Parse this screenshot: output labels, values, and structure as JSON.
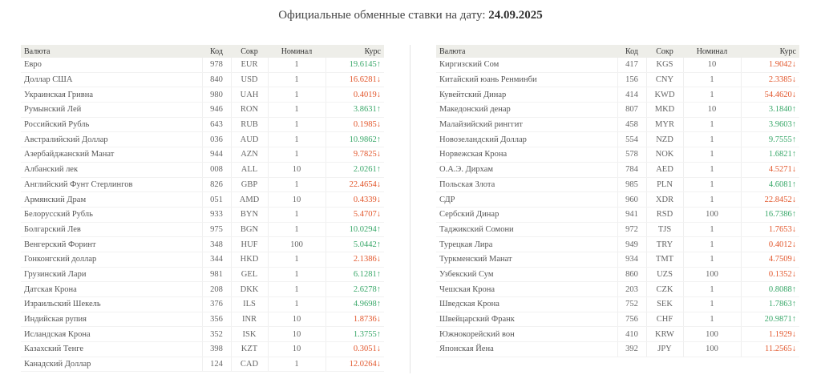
{
  "page": {
    "title_prefix": "Официальные обменные ставки на дату:",
    "title_date": "24.09.2025"
  },
  "headers": {
    "name": "Валюта",
    "code": "Код",
    "symbol": "Сокр",
    "nominal": "Номинал",
    "rate": "Курс"
  },
  "colors": {
    "up": "#3aa86a",
    "down": "#e2572c",
    "header_bg": "#eeeee9"
  },
  "left_rows": [
    {
      "name": "Евро",
      "code": "978",
      "symbol": "EUR",
      "nominal": "1",
      "rate": "19.6145↑",
      "dir": "up"
    },
    {
      "name": "Доллар США",
      "code": "840",
      "symbol": "USD",
      "nominal": "1",
      "rate": "16.6281↓",
      "dir": "down"
    },
    {
      "name": "Украинская Гривна",
      "code": "980",
      "symbol": "UAH",
      "nominal": "1",
      "rate": "0.4019↓",
      "dir": "down"
    },
    {
      "name": "Румынский Лей",
      "code": "946",
      "symbol": "RON",
      "nominal": "1",
      "rate": "3.8631↑",
      "dir": "up"
    },
    {
      "name": "Российский Рубль",
      "code": "643",
      "symbol": "RUB",
      "nominal": "1",
      "rate": "0.1985↓",
      "dir": "down"
    },
    {
      "name": "Австралийский Доллар",
      "code": "036",
      "symbol": "AUD",
      "nominal": "1",
      "rate": "10.9862↑",
      "dir": "up"
    },
    {
      "name": "Азербайджанский Манат",
      "code": "944",
      "symbol": "AZN",
      "nominal": "1",
      "rate": "9.7825↓",
      "dir": "down"
    },
    {
      "name": "Албанский лек",
      "code": "008",
      "symbol": "ALL",
      "nominal": "10",
      "rate": "2.0261↑",
      "dir": "up"
    },
    {
      "name": "Английский Фунт Стерлингов",
      "code": "826",
      "symbol": "GBP",
      "nominal": "1",
      "rate": "22.4654↓",
      "dir": "down"
    },
    {
      "name": "Армянский Драм",
      "code": "051",
      "symbol": "AMD",
      "nominal": "10",
      "rate": "0.4339↓",
      "dir": "down"
    },
    {
      "name": "Белорусский Рубль",
      "code": "933",
      "symbol": "BYN",
      "nominal": "1",
      "rate": "5.4707↓",
      "dir": "down"
    },
    {
      "name": "Болгарский Лев",
      "code": "975",
      "symbol": "BGN",
      "nominal": "1",
      "rate": "10.0294↑",
      "dir": "up"
    },
    {
      "name": "Венгерский Форинт",
      "code": "348",
      "symbol": "HUF",
      "nominal": "100",
      "rate": "5.0442↑",
      "dir": "up"
    },
    {
      "name": "Гонконгский доллар",
      "code": "344",
      "symbol": "HKD",
      "nominal": "1",
      "rate": "2.1386↓",
      "dir": "down"
    },
    {
      "name": "Грузинский Лари",
      "code": "981",
      "symbol": "GEL",
      "nominal": "1",
      "rate": "6.1281↑",
      "dir": "up"
    },
    {
      "name": "Датская Крона",
      "code": "208",
      "symbol": "DKK",
      "nominal": "1",
      "rate": "2.6278↑",
      "dir": "up"
    },
    {
      "name": "Израильский Шекель",
      "code": "376",
      "symbol": "ILS",
      "nominal": "1",
      "rate": "4.9698↑",
      "dir": "up"
    },
    {
      "name": "Индийская рупия",
      "code": "356",
      "symbol": "INR",
      "nominal": "10",
      "rate": "1.8736↓",
      "dir": "down"
    },
    {
      "name": "Исландская Крона",
      "code": "352",
      "symbol": "ISK",
      "nominal": "10",
      "rate": "1.3755↑",
      "dir": "up"
    },
    {
      "name": "Казахский Тенге",
      "code": "398",
      "symbol": "KZT",
      "nominal": "10",
      "rate": "0.3051↓",
      "dir": "down"
    },
    {
      "name": "Канадский Доллар",
      "code": "124",
      "symbol": "CAD",
      "nominal": "1",
      "rate": "12.0264↓",
      "dir": "down"
    }
  ],
  "right_rows": [
    {
      "name": "Киргизский Сом",
      "code": "417",
      "symbol": "KGS",
      "nominal": "10",
      "rate": "1.9042↓",
      "dir": "down"
    },
    {
      "name": "Китайский юань Ренминби",
      "code": "156",
      "symbol": "CNY",
      "nominal": "1",
      "rate": "2.3385↓",
      "dir": "down"
    },
    {
      "name": "Кувейтский Динар",
      "code": "414",
      "symbol": "KWD",
      "nominal": "1",
      "rate": "54.4620↓",
      "dir": "down"
    },
    {
      "name": "Македонский денар",
      "code": "807",
      "symbol": "MKD",
      "nominal": "10",
      "rate": "3.1840↑",
      "dir": "up"
    },
    {
      "name": "Малайзийский ринггит",
      "code": "458",
      "symbol": "MYR",
      "nominal": "1",
      "rate": "3.9603↑",
      "dir": "up"
    },
    {
      "name": "Новозеландский Доллар",
      "code": "554",
      "symbol": "NZD",
      "nominal": "1",
      "rate": "9.7555↑",
      "dir": "up"
    },
    {
      "name": "Норвежская Крона",
      "code": "578",
      "symbol": "NOK",
      "nominal": "1",
      "rate": "1.6821↑",
      "dir": "up"
    },
    {
      "name": "О.А.Э. Дирхам",
      "code": "784",
      "symbol": "AED",
      "nominal": "1",
      "rate": "4.5271↓",
      "dir": "down"
    },
    {
      "name": "Польская Злота",
      "code": "985",
      "symbol": "PLN",
      "nominal": "1",
      "rate": "4.6081↑",
      "dir": "up"
    },
    {
      "name": "СДР",
      "code": "960",
      "symbol": "XDR",
      "nominal": "1",
      "rate": "22.8452↓",
      "dir": "down"
    },
    {
      "name": "Сербский Динар",
      "code": "941",
      "symbol": "RSD",
      "nominal": "100",
      "rate": "16.7386↑",
      "dir": "up"
    },
    {
      "name": "Таджикский Сомони",
      "code": "972",
      "symbol": "TJS",
      "nominal": "1",
      "rate": "1.7653↓",
      "dir": "down"
    },
    {
      "name": "Турецкая Лира",
      "code": "949",
      "symbol": "TRY",
      "nominal": "1",
      "rate": "0.4012↓",
      "dir": "down"
    },
    {
      "name": "Туркменский Манат",
      "code": "934",
      "symbol": "TMT",
      "nominal": "1",
      "rate": "4.7509↓",
      "dir": "down"
    },
    {
      "name": "Узбекский Сум",
      "code": "860",
      "symbol": "UZS",
      "nominal": "100",
      "rate": "0.1352↓",
      "dir": "down"
    },
    {
      "name": "Чешская Крона",
      "code": "203",
      "symbol": "CZK",
      "nominal": "1",
      "rate": "0.8088↑",
      "dir": "up"
    },
    {
      "name": "Шведская Крона",
      "code": "752",
      "symbol": "SEK",
      "nominal": "1",
      "rate": "1.7863↑",
      "dir": "up"
    },
    {
      "name": "Швейцарский Франк",
      "code": "756",
      "symbol": "CHF",
      "nominal": "1",
      "rate": "20.9871↑",
      "dir": "up"
    },
    {
      "name": "Южнокорейский вон",
      "code": "410",
      "symbol": "KRW",
      "nominal": "100",
      "rate": "1.1929↓",
      "dir": "down"
    },
    {
      "name": "Японская Йена",
      "code": "392",
      "symbol": "JPY",
      "nominal": "100",
      "rate": "11.2565↓",
      "dir": "down"
    }
  ]
}
